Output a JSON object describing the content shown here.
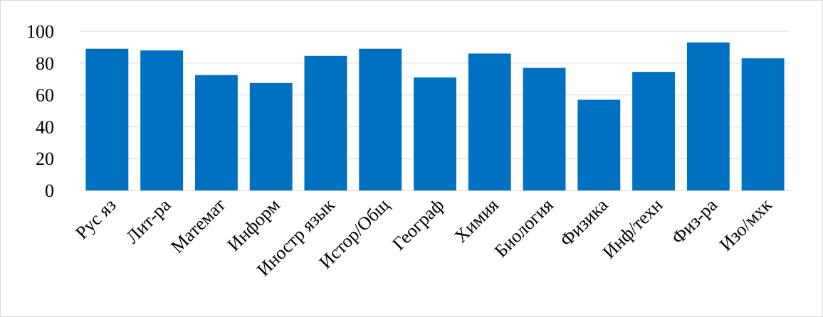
{
  "chart_data": {
    "type": "bar",
    "title": "",
    "xlabel": "",
    "ylabel": "",
    "categories": [
      "Рус яз",
      "Лит-ра",
      "Математ",
      "Информ",
      "Иностр язык",
      "Истор/Общ",
      "Географ",
      "Химия",
      "Биология",
      "Физика",
      "Инф/техн",
      "Физ-ра",
      "Изо/мхк"
    ],
    "values": [
      89,
      88,
      72.5,
      67.5,
      84.5,
      89,
      71,
      86,
      77,
      57,
      74.5,
      93,
      83
    ],
    "ylim": [
      0,
      100
    ],
    "yticks": [
      0,
      20,
      40,
      60,
      80,
      100
    ],
    "grid": true,
    "legend": "none",
    "bar_color": "#0070C0"
  }
}
